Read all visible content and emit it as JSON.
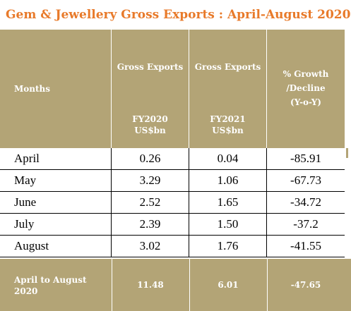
{
  "title": "Gem & Jewellery Gross Exports : April-August 2020",
  "header": {
    "months": "Months",
    "fy2020_line1": "Gross Exports",
    "fy2020_line2": "FY2020",
    "fy2020_line3": "US$bn",
    "fy2021_line1": "Gross Exports",
    "fy2021_line2": "FY2021",
    "fy2021_line3": "US$bn",
    "growth_line1": "% Growth",
    "growth_line2": "/Decline",
    "growth_line3": "(Y-o-Y)"
  },
  "rows": [
    {
      "month": "April",
      "fy2020": "0.26",
      "fy2021": "0.04",
      "growth": "-85.91"
    },
    {
      "month": "May",
      "fy2020": "3.29",
      "fy2021": "1.06",
      "growth": "-67.73"
    },
    {
      "month": "June",
      "fy2020": "2.52",
      "fy2021": "1.65",
      "growth": "-34.72"
    },
    {
      "month": "July",
      "fy2020": "2.39",
      "fy2021": "1.50",
      "growth": "-37.2"
    },
    {
      "month": "August",
      "fy2020": "3.02",
      "fy2021": "1.76",
      "growth": "-41.55"
    }
  ],
  "total": {
    "label": "April to August 2020",
    "fy2020": "11.48",
    "fy2021": "6.01",
    "growth": "-47.65"
  },
  "colors": {
    "title": "#e87a2a",
    "header_bg": "#b3a476",
    "header_text": "#ffffff"
  }
}
